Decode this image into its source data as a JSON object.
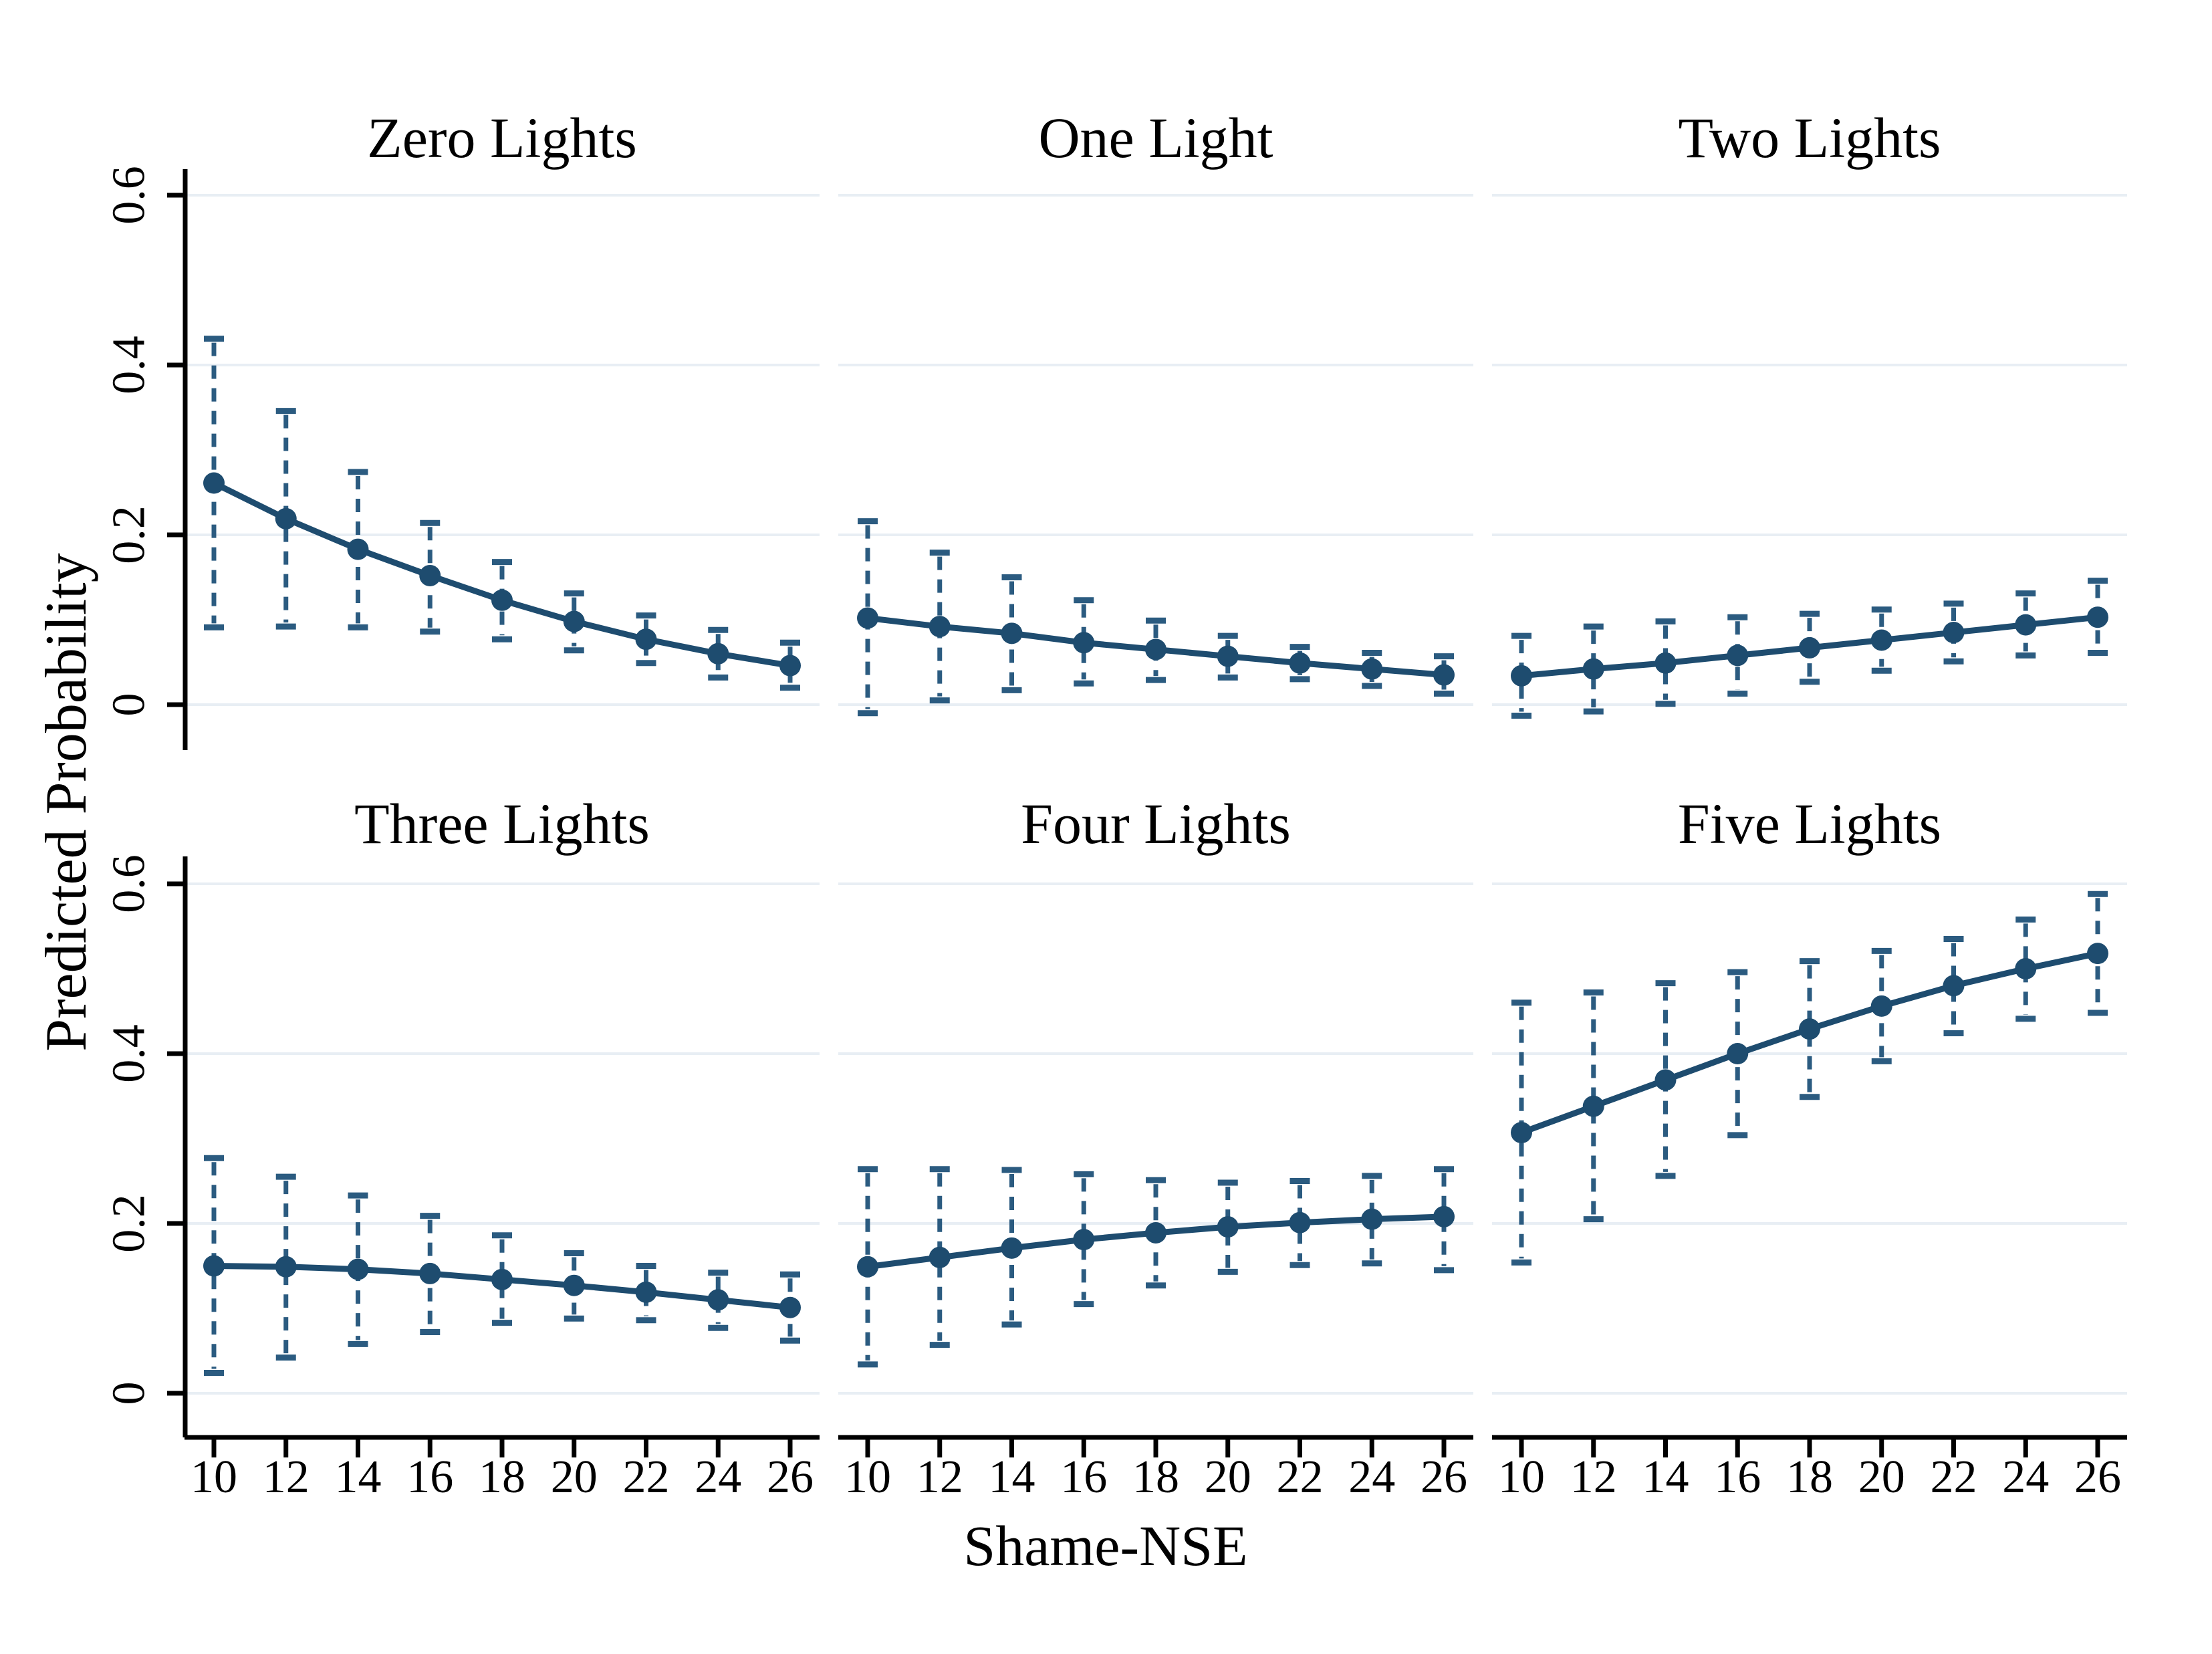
{
  "figure": {
    "kind": "stata-marginsplot-grid"
  },
  "chart_data": {
    "type": "line",
    "title": "",
    "xlabel": "Shame-NSE",
    "ylabel": "Predicted Probability",
    "x": [
      10,
      12,
      14,
      16,
      18,
      20,
      22,
      24,
      26
    ],
    "x_ticks": [
      "10",
      "12",
      "14",
      "16",
      "18",
      "20",
      "22",
      "24",
      "26"
    ],
    "y_ticks": [
      {
        "v": 0.0,
        "label": "0"
      },
      {
        "v": 0.2,
        "label": "0.2"
      },
      {
        "v": 0.4,
        "label": "0.4"
      },
      {
        "v": 0.6,
        "label": "0.6"
      }
    ],
    "xlim": [
      10,
      26
    ],
    "ylim": [
      -0.05,
      0.65
    ],
    "grid": true,
    "legend": "none",
    "layout_hint": {
      "rows": 2,
      "cols": 3,
      "ci_style": "dashed-with-caps",
      "marker": "filled-circle"
    },
    "colors": {
      "series": "#1e4c6f",
      "ci": "#2b5b80",
      "grid": "#e8eef4",
      "axis": "#000000",
      "background": "#ffffff"
    },
    "panels": [
      {
        "title": "Zero Lights",
        "y": [
          0.261,
          0.219,
          0.183,
          0.152,
          0.123,
          0.098,
          0.077,
          0.06,
          0.046
        ],
        "ci_low": [
          0.091,
          0.092,
          0.091,
          0.086,
          0.077,
          0.064,
          0.049,
          0.032,
          0.02
        ],
        "ci_high": [
          0.431,
          0.346,
          0.274,
          0.214,
          0.168,
          0.131,
          0.105,
          0.088,
          0.073
        ]
      },
      {
        "title": "One Light",
        "y": [
          0.102,
          0.092,
          0.084,
          0.073,
          0.065,
          0.057,
          0.049,
          0.042,
          0.035
        ],
        "ci_low": [
          -0.01,
          0.005,
          0.017,
          0.025,
          0.029,
          0.032,
          0.03,
          0.022,
          0.013
        ],
        "ci_high": [
          0.216,
          0.179,
          0.15,
          0.123,
          0.099,
          0.081,
          0.068,
          0.061,
          0.057
        ]
      },
      {
        "title": "Two Lights",
        "y": [
          0.034,
          0.042,
          0.049,
          0.058,
          0.067,
          0.076,
          0.085,
          0.094,
          0.103
        ],
        "ci_low": [
          -0.013,
          -0.008,
          0.001,
          0.013,
          0.027,
          0.04,
          0.051,
          0.058,
          0.061
        ],
        "ci_high": [
          0.081,
          0.092,
          0.098,
          0.103,
          0.107,
          0.112,
          0.119,
          0.131,
          0.146
        ]
      },
      {
        "title": "Three Lights",
        "y": [
          0.15,
          0.149,
          0.146,
          0.141,
          0.134,
          0.127,
          0.119,
          0.11,
          0.101
        ],
        "ci_low": [
          0.024,
          0.042,
          0.058,
          0.072,
          0.083,
          0.088,
          0.086,
          0.077,
          0.062
        ],
        "ci_high": [
          0.277,
          0.255,
          0.233,
          0.209,
          0.186,
          0.165,
          0.15,
          0.142,
          0.14
        ]
      },
      {
        "title": "Four Lights",
        "y": [
          0.149,
          0.16,
          0.171,
          0.181,
          0.189,
          0.196,
          0.201,
          0.205,
          0.208
        ],
        "ci_low": [
          0.034,
          0.057,
          0.081,
          0.105,
          0.127,
          0.143,
          0.151,
          0.153,
          0.145
        ],
        "ci_high": [
          0.264,
          0.264,
          0.263,
          0.258,
          0.251,
          0.248,
          0.25,
          0.256,
          0.264
        ]
      },
      {
        "title": "Five Lights",
        "y": [
          0.307,
          0.338,
          0.369,
          0.4,
          0.429,
          0.456,
          0.48,
          0.5,
          0.518
        ],
        "ci_low": [
          0.154,
          0.205,
          0.256,
          0.304,
          0.349,
          0.391,
          0.424,
          0.441,
          0.448
        ],
        "ci_high": [
          0.46,
          0.472,
          0.483,
          0.496,
          0.509,
          0.521,
          0.535,
          0.558,
          0.588
        ]
      }
    ]
  }
}
